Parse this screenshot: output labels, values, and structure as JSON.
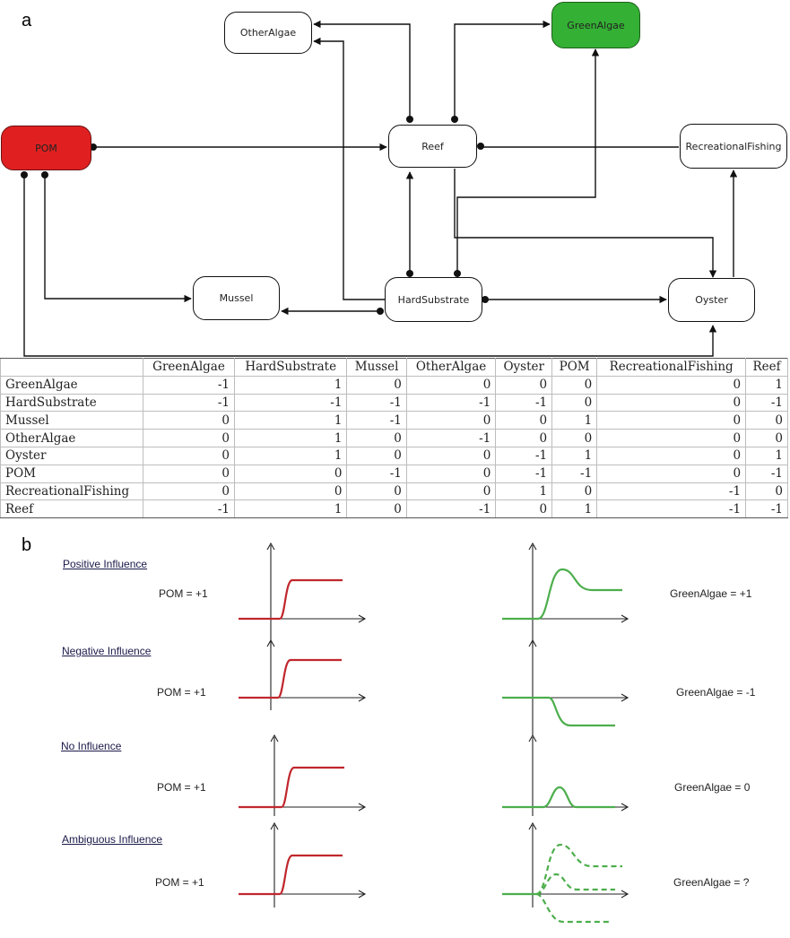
{
  "panels": {
    "a": "a",
    "b": "b"
  },
  "nodes": {
    "other_algae": "OtherAlgae",
    "green_algae": "GreenAlgae",
    "pom": "POM",
    "reef": "Reef",
    "recreational_fishing": "RecreationalFishing",
    "mussel": "Mussel",
    "hard_substrate": "HardSubstrate",
    "oyster": "Oyster"
  },
  "colors": {
    "pom_fill": "#e02020",
    "green_algae_fill": "#34b034",
    "input_curve": "#c0272d",
    "response_curve": "#4cae4c"
  },
  "matrix": {
    "columns": [
      "GreenAlgae",
      "HardSubstrate",
      "Mussel",
      "OtherAlgae",
      "Oyster",
      "POM",
      "RecreationalFishing",
      "Reef"
    ],
    "rows": [
      {
        "label": "GreenAlgae",
        "values": [
          "-1",
          "1",
          "0",
          "0",
          "0",
          "0",
          "0",
          "1"
        ]
      },
      {
        "label": "HardSubstrate",
        "values": [
          "-1",
          "-1",
          "-1",
          "-1",
          "-1",
          "0",
          "0",
          "-1"
        ]
      },
      {
        "label": "Mussel",
        "values": [
          "0",
          "1",
          "-1",
          "0",
          "0",
          "1",
          "0",
          "0"
        ]
      },
      {
        "label": "OtherAlgae",
        "values": [
          "0",
          "1",
          "0",
          "-1",
          "0",
          "0",
          "0",
          "0"
        ]
      },
      {
        "label": "Oyster",
        "values": [
          "0",
          "1",
          "0",
          "0",
          "-1",
          "1",
          "0",
          "1"
        ]
      },
      {
        "label": "POM",
        "values": [
          "0",
          "0",
          "-1",
          "0",
          "-1",
          "-1",
          "0",
          "-1"
        ]
      },
      {
        "label": "RecreationalFishing",
        "values": [
          "0",
          "0",
          "0",
          "0",
          "1",
          "0",
          "-1",
          "0"
        ]
      },
      {
        "label": "Reef",
        "values": [
          "-1",
          "1",
          "0",
          "-1",
          "0",
          "1",
          "-1",
          "-1"
        ]
      }
    ]
  },
  "influence": [
    {
      "title": "Positive Influence",
      "input_label": "POM = +1",
      "output_label": "GreenAlgae = +1",
      "response": "positive"
    },
    {
      "title": "Negative Influence",
      "input_label": "POM = +1",
      "output_label": "GreenAlgae = -1",
      "response": "negative"
    },
    {
      "title": "No Influence",
      "input_label": "POM = +1",
      "output_label": "GreenAlgae = 0",
      "response": "none"
    },
    {
      "title": "Ambiguous Influence",
      "input_label": "POM = +1",
      "output_label": "GreenAlgae = ?",
      "response": "ambiguous"
    }
  ]
}
